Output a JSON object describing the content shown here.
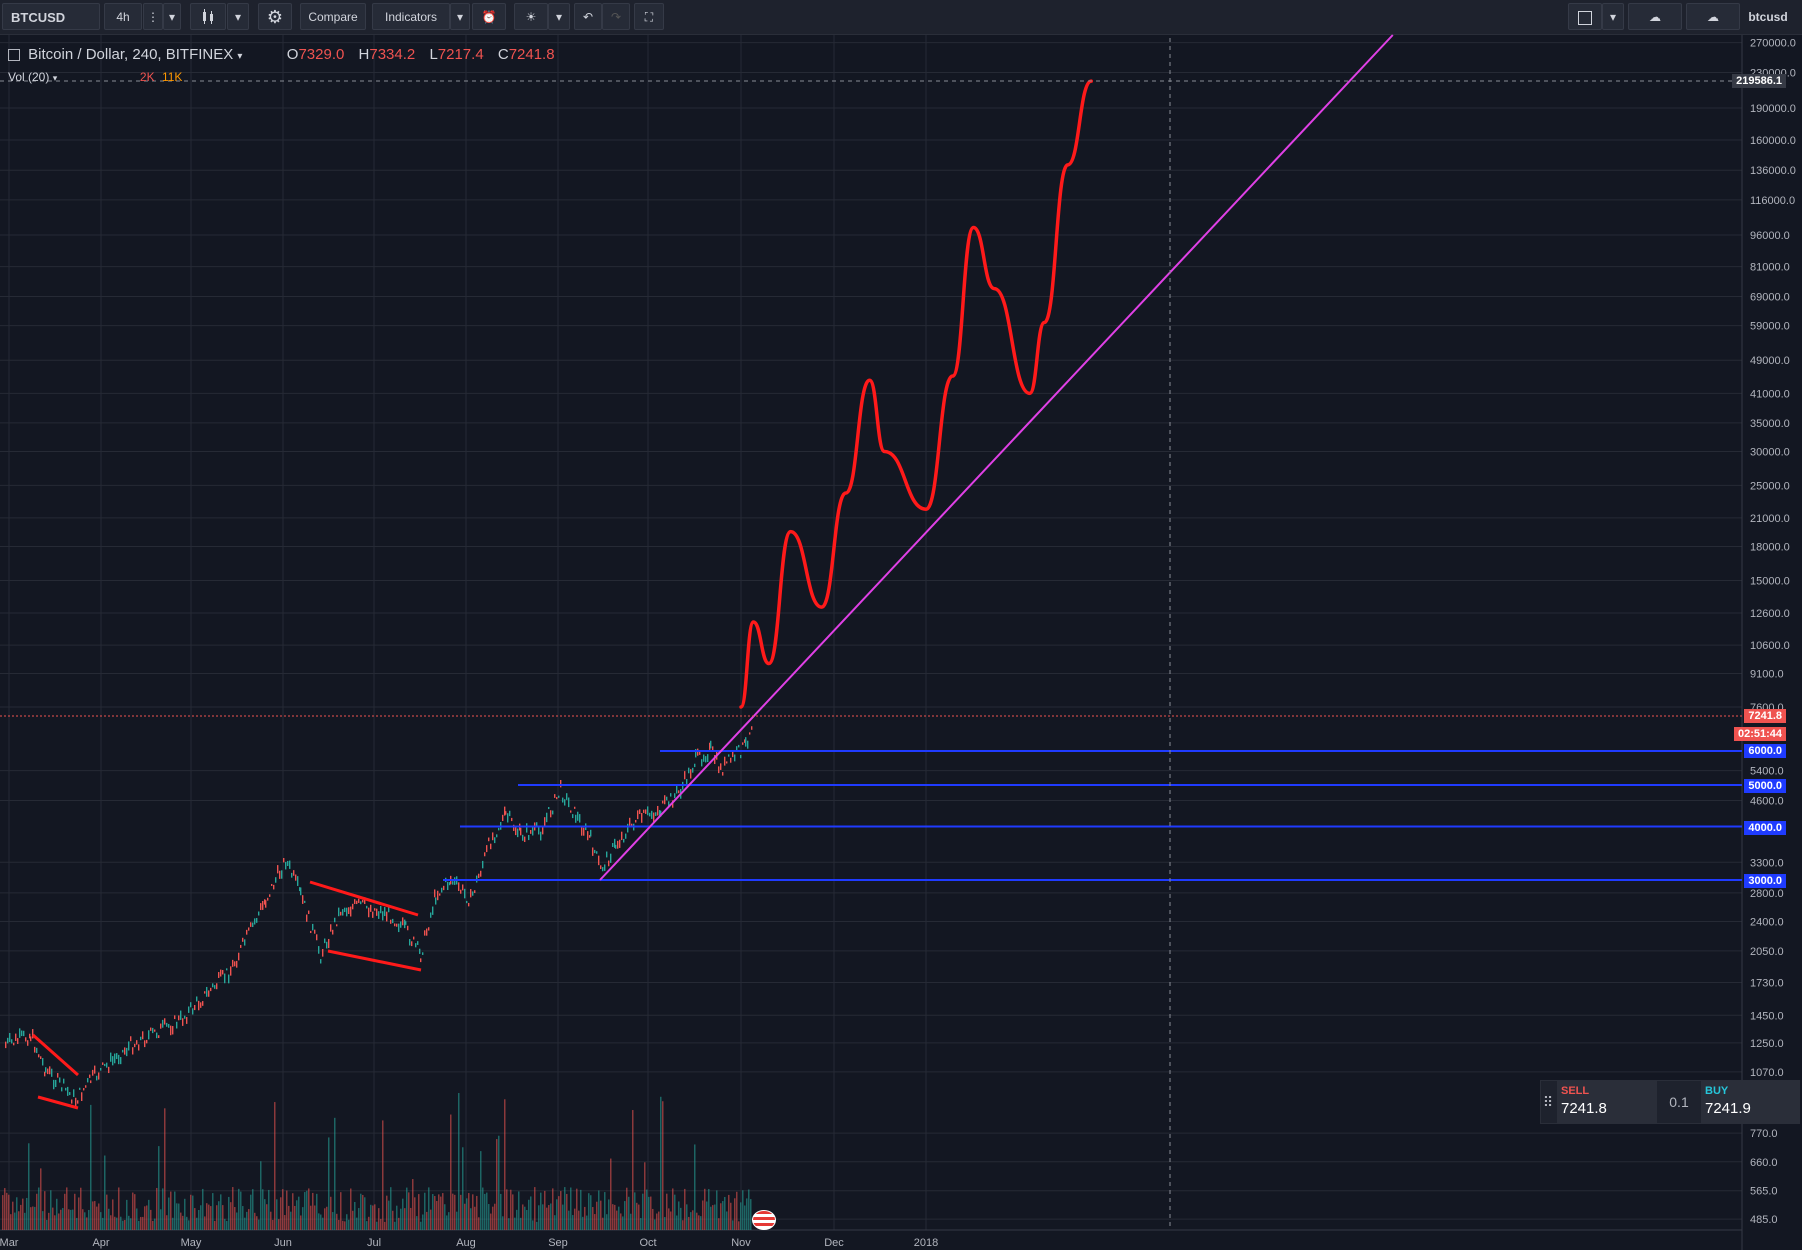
{
  "toolbar": {
    "symbol": "BTCUSD",
    "interval": "4h",
    "compare_label": "Compare",
    "indicators_label": "Indicators",
    "account_label": "btcusd"
  },
  "legend": {
    "title": "Bitcoin / Dollar, 240, BITFINEX",
    "open_key": "O",
    "open": "7329.0",
    "high_key": "H",
    "high": "7334.2",
    "low_key": "L",
    "low": "7217.4",
    "close_key": "C",
    "close": "7241.8",
    "vol_label": "Vol (20)",
    "vol_value1": "2K",
    "vol_value2": "11K"
  },
  "price_axis": {
    "ticks": [
      "270000.0",
      "230000.0",
      "190000.0",
      "160000.0",
      "136000.0",
      "116000.0",
      "96000.0",
      "81000.0",
      "69000.0",
      "59000.0",
      "49000.0",
      "41000.0",
      "35000.0",
      "30000.0",
      "25000.0",
      "21000.0",
      "18000.0",
      "15000.0",
      "12600.0",
      "10600.0",
      "9100.0",
      "7600.0",
      "5400.0",
      "4600.0",
      "3300.0",
      "2800.0",
      "2400.0",
      "2050.0",
      "1730.0",
      "1450.0",
      "1250.0",
      "1070.0",
      "770.0",
      "660.0",
      "565.0",
      "485.0"
    ],
    "crosshair_price": "219586.1",
    "last_price": "7241.8",
    "countdown": "02:51:44",
    "levels": [
      "6000.0",
      "5000.0",
      "4000.0",
      "3000.0"
    ]
  },
  "time_axis": {
    "ticks": [
      "Mar",
      "Apr",
      "May",
      "Jun",
      "Jul",
      "Aug",
      "Sep",
      "Oct",
      "Nov",
      "Dec",
      "2018"
    ]
  },
  "trade": {
    "sell_label": "SELL",
    "sell_price": "7241.8",
    "quantity": "0.1",
    "buy_label": "BUY",
    "buy_price": "7241.9"
  },
  "colors": {
    "background": "#131722",
    "projection": "#ff1a1a",
    "trendline": "#e040e6",
    "level_lines": "#1f3bff",
    "sell": "#ef5350",
    "buy": "#26c6da"
  },
  "chart_data": {
    "type": "line",
    "symbol": "BTCUSD",
    "exchange": "BITFINEX",
    "interval": "240",
    "y_scale": "log",
    "ylim": [
      485,
      270000
    ],
    "support_levels": [
      6000,
      5000,
      4000,
      3000
    ],
    "last_price": 7241.8,
    "projection_series": {
      "name": "",
      "x": [
        "2017-11-01",
        "2017-11-05",
        "2017-11-10",
        "2017-11-17",
        "2017-11-27",
        "2017-12-05",
        "2017-12-13",
        "2017-12-18",
        "2018-01-01",
        "2018-01-10",
        "2018-01-17",
        "2018-01-24",
        "2018-02-05",
        "2018-02-10",
        "2018-02-18",
        "2018-02-26"
      ],
      "values": [
        7600,
        12000,
        9600,
        19500,
        13000,
        24000,
        44000,
        30000,
        22000,
        45000,
        100000,
        72000,
        41000,
        60000,
        140000,
        219586
      ]
    },
    "trendline": {
      "from": [
        "2017-09-15",
        3000
      ],
      "to": [
        "2018-02-26",
        50000
      ]
    }
  }
}
